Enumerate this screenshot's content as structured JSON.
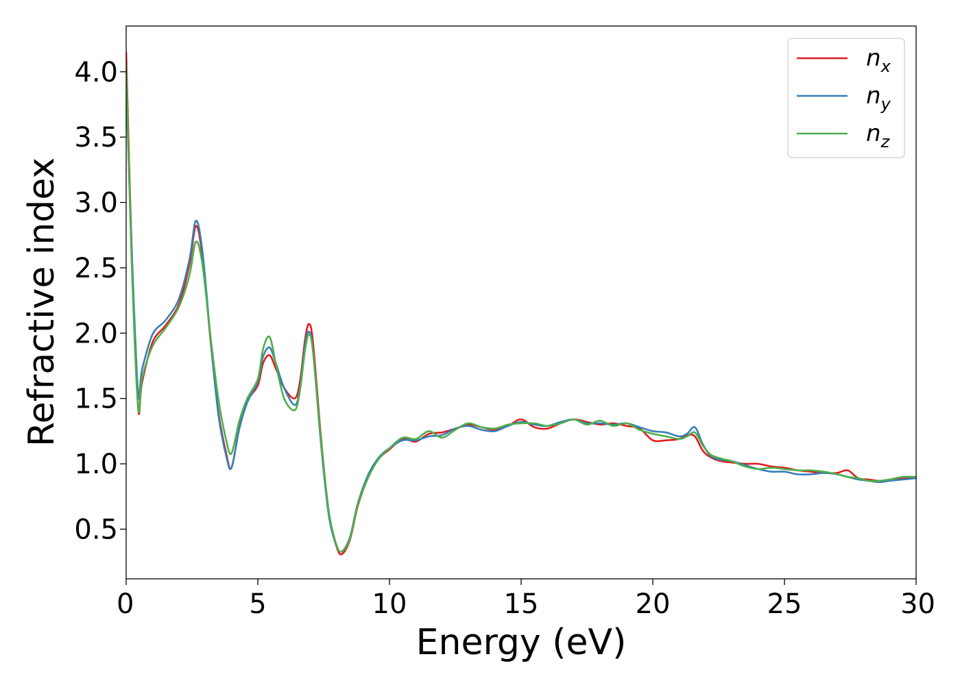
{
  "chart_data": {
    "type": "line",
    "title": "",
    "xlabel": "Energy (eV)",
    "ylabel": "Refractive index",
    "xlim": [
      0,
      30
    ],
    "ylim": [
      0.12,
      4.35
    ],
    "xticks": [
      0,
      5,
      10,
      15,
      20,
      25,
      30
    ],
    "xtick_labels": [
      "0",
      "5",
      "10",
      "15",
      "20",
      "25",
      "30"
    ],
    "yticks": [
      0.5,
      1.0,
      1.5,
      2.0,
      2.5,
      3.0,
      3.5,
      4.0
    ],
    "ytick_labels": [
      "0.5",
      "1.0",
      "1.5",
      "2.0",
      "2.5",
      "3.0",
      "3.5",
      "4.0"
    ],
    "grid": false,
    "legend_position": "top-right",
    "x": [
      0,
      0.2,
      0.45,
      0.6,
      1.0,
      1.5,
      2.0,
      2.4,
      2.65,
      2.9,
      3.2,
      3.5,
      3.8,
      4.0,
      4.3,
      4.6,
      5.0,
      5.2,
      5.45,
      5.7,
      6.0,
      6.4,
      6.6,
      6.8,
      6.95,
      7.1,
      7.4,
      7.7,
      8.0,
      8.2,
      8.5,
      8.8,
      9.2,
      9.6,
      10.0,
      10.5,
      11.0,
      11.5,
      12.0,
      12.5,
      13.0,
      13.5,
      14.0,
      14.5,
      15.0,
      15.5,
      16.0,
      16.5,
      17.0,
      17.5,
      18.0,
      18.5,
      19.0,
      19.5,
      20.0,
      20.5,
      21.0,
      21.3,
      21.6,
      21.9,
      22.2,
      22.6,
      23.0,
      23.5,
      24.0,
      24.5,
      25.0,
      25.5,
      26.0,
      26.5,
      27.0,
      27.4,
      27.8,
      28.2,
      28.6,
      29.0,
      29.5,
      30.0
    ],
    "series": [
      {
        "name": "n_x",
        "label_base": "n",
        "label_sub": "x",
        "color": "#e41a1c",
        "values": [
          4.15,
          2.7,
          1.44,
          1.62,
          1.93,
          2.06,
          2.22,
          2.52,
          2.82,
          2.58,
          1.95,
          1.4,
          1.08,
          0.97,
          1.28,
          1.48,
          1.6,
          1.77,
          1.83,
          1.72,
          1.58,
          1.5,
          1.63,
          1.96,
          2.07,
          1.92,
          1.2,
          0.62,
          0.36,
          0.31,
          0.42,
          0.68,
          0.9,
          1.04,
          1.11,
          1.19,
          1.17,
          1.23,
          1.24,
          1.27,
          1.3,
          1.28,
          1.26,
          1.29,
          1.34,
          1.28,
          1.27,
          1.31,
          1.34,
          1.32,
          1.3,
          1.31,
          1.29,
          1.27,
          1.18,
          1.18,
          1.19,
          1.22,
          1.21,
          1.1,
          1.05,
          1.02,
          1.01,
          1.0,
          1.0,
          0.98,
          0.97,
          0.95,
          0.94,
          0.93,
          0.93,
          0.95,
          0.89,
          0.88,
          0.87,
          0.88,
          0.89,
          0.89
        ]
      },
      {
        "name": "n_y",
        "label_base": "n",
        "label_sub": "y",
        "color": "#377eb8",
        "values": [
          3.9,
          2.7,
          1.55,
          1.72,
          1.99,
          2.1,
          2.26,
          2.56,
          2.86,
          2.62,
          1.97,
          1.38,
          1.06,
          0.97,
          1.27,
          1.47,
          1.63,
          1.82,
          1.89,
          1.76,
          1.58,
          1.45,
          1.58,
          1.92,
          2.01,
          1.86,
          1.15,
          0.6,
          0.37,
          0.33,
          0.44,
          0.7,
          0.92,
          1.05,
          1.12,
          1.18,
          1.18,
          1.21,
          1.22,
          1.27,
          1.29,
          1.26,
          1.25,
          1.29,
          1.32,
          1.3,
          1.29,
          1.32,
          1.34,
          1.31,
          1.31,
          1.3,
          1.31,
          1.28,
          1.25,
          1.24,
          1.21,
          1.23,
          1.28,
          1.15,
          1.06,
          1.03,
          1.02,
          0.99,
          0.96,
          0.94,
          0.94,
          0.92,
          0.92,
          0.93,
          0.92,
          0.9,
          0.88,
          0.87,
          0.86,
          0.87,
          0.88,
          0.89
        ]
      },
      {
        "name": "n_z",
        "label_base": "n",
        "label_sub": "z",
        "color": "#4daf4a",
        "values": [
          4.05,
          2.6,
          1.44,
          1.65,
          1.9,
          2.04,
          2.2,
          2.44,
          2.7,
          2.52,
          1.98,
          1.5,
          1.18,
          1.08,
          1.33,
          1.5,
          1.65,
          1.88,
          1.97,
          1.75,
          1.5,
          1.41,
          1.56,
          1.88,
          1.99,
          1.85,
          1.18,
          0.63,
          0.37,
          0.33,
          0.43,
          0.69,
          0.9,
          1.04,
          1.12,
          1.2,
          1.19,
          1.25,
          1.2,
          1.26,
          1.31,
          1.28,
          1.27,
          1.3,
          1.31,
          1.31,
          1.29,
          1.31,
          1.34,
          1.3,
          1.33,
          1.29,
          1.31,
          1.26,
          1.23,
          1.21,
          1.19,
          1.21,
          1.24,
          1.14,
          1.07,
          1.04,
          1.02,
          0.98,
          0.96,
          0.97,
          0.96,
          0.95,
          0.95,
          0.94,
          0.92,
          0.9,
          0.89,
          0.87,
          0.87,
          0.88,
          0.9,
          0.9
        ]
      }
    ]
  }
}
